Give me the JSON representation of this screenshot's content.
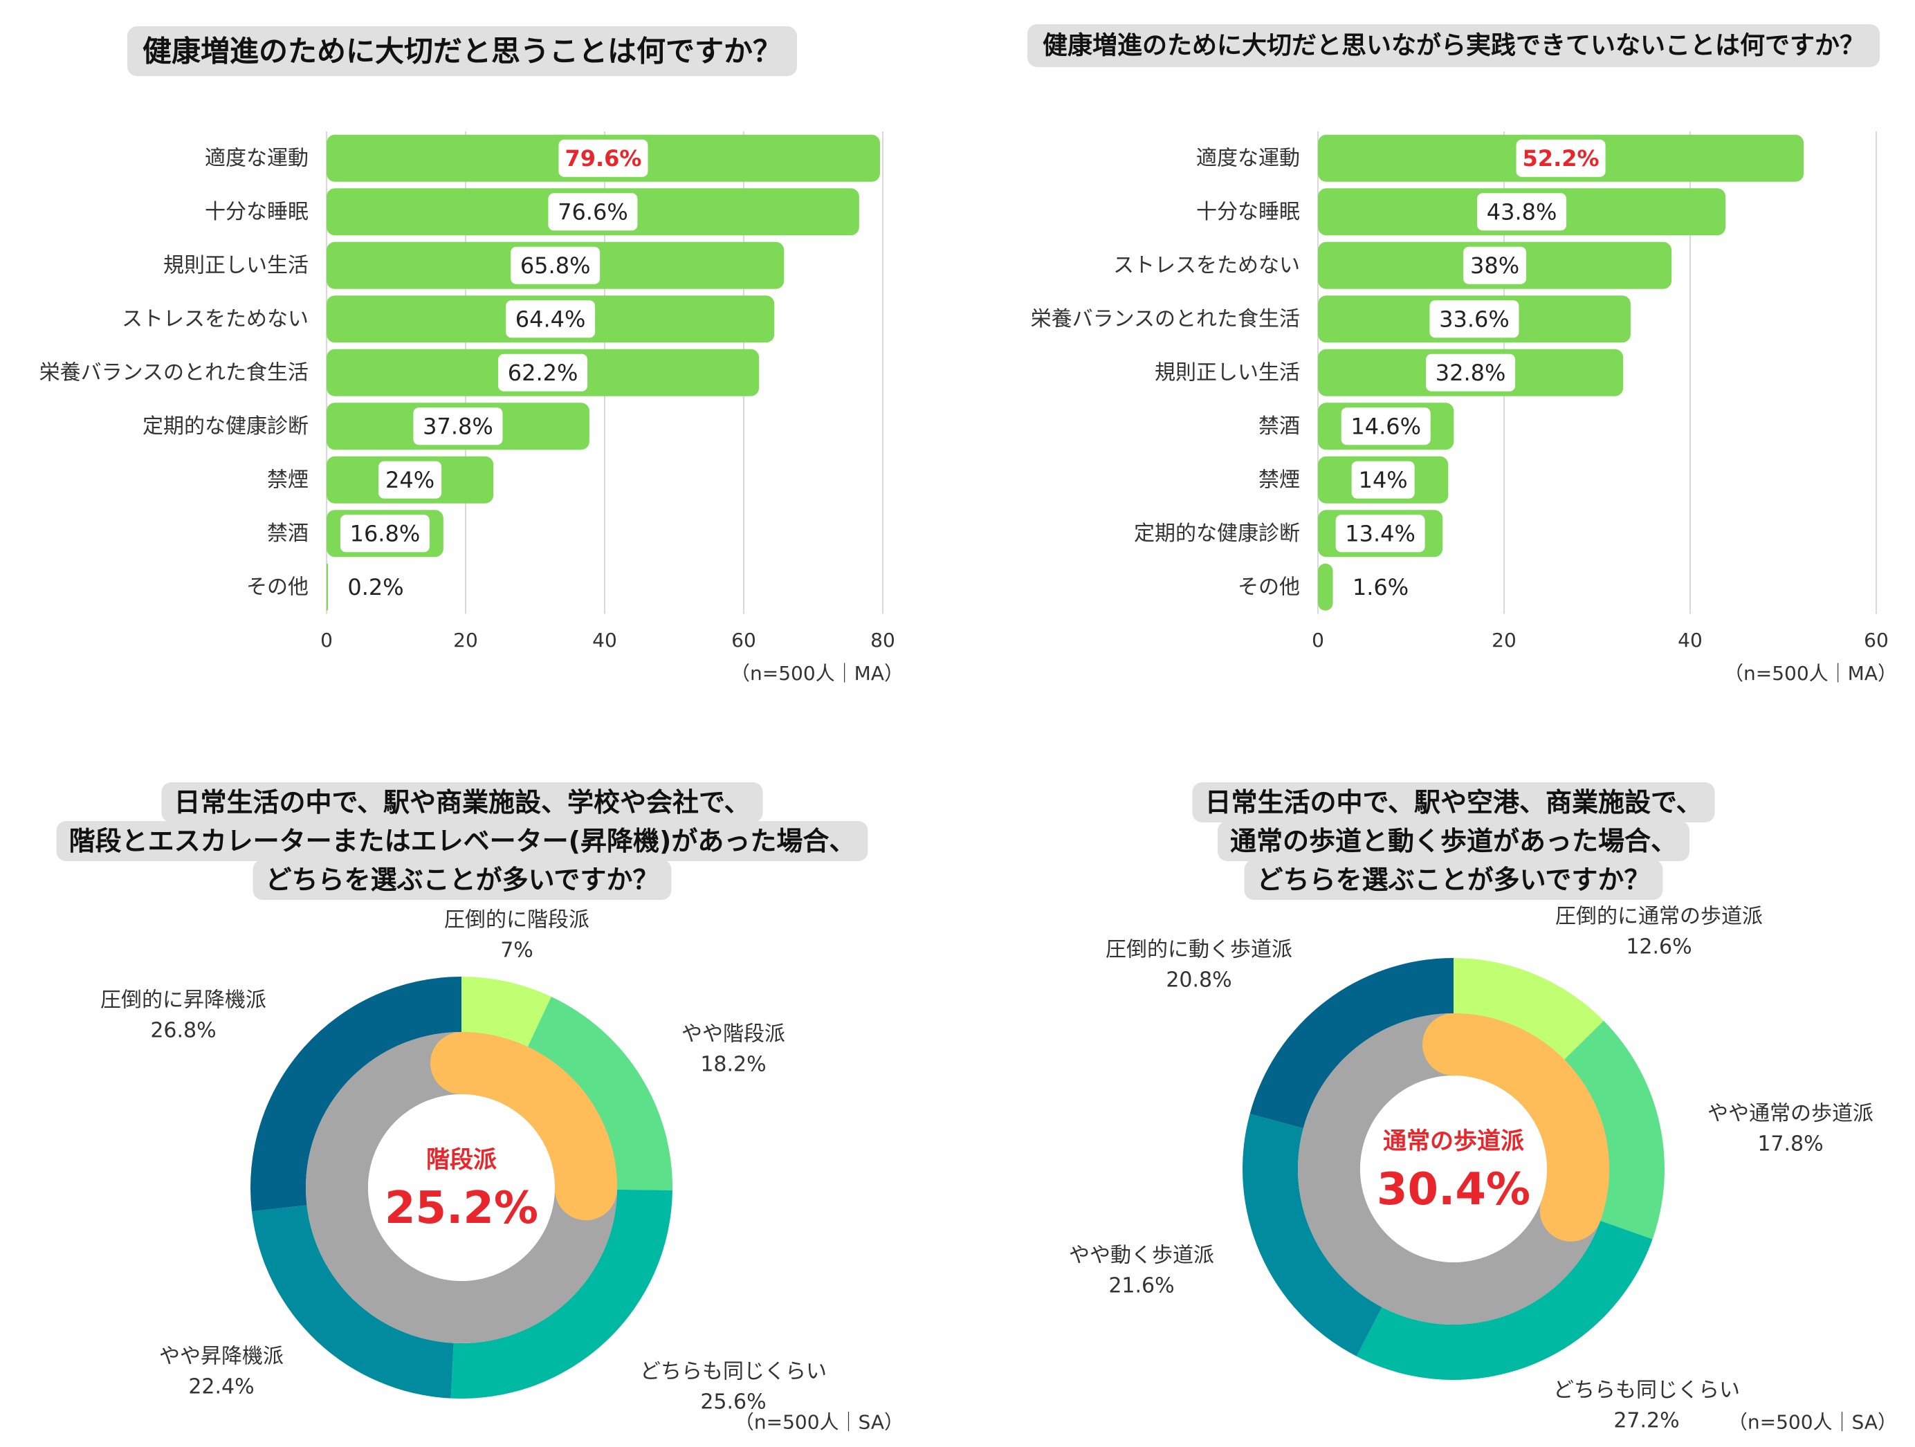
{
  "colors": {
    "bar": "#7ed957",
    "grid": "#d9d9d9",
    "title_bg": "#e0e0e0",
    "highlight": "#e8262b",
    "inner_gray": "#a6a6a6",
    "inner_orange": "#ffbd59",
    "donut": [
      "#c1ff72",
      "#5ce08a",
      "#00b9a3",
      "#008c9e",
      "#02648a"
    ]
  },
  "chart_data": [
    {
      "type": "bar",
      "orientation": "horizontal",
      "title": "健康増進のために大切だと思うことは何ですか？",
      "categories": [
        "適度な運動",
        "十分な睡眠",
        "規則正しい生活",
        "ストレスをためない",
        "栄養バランスのとれた食生活",
        "定期的な健康診断",
        "禁煙",
        "禁酒",
        "その他"
      ],
      "values": [
        79.6,
        76.6,
        65.8,
        64.4,
        62.2,
        37.8,
        24,
        16.8,
        0.2
      ],
      "labels": [
        "79.6%",
        "76.6%",
        "65.8%",
        "64.4%",
        "62.2%",
        "37.8%",
        "24%",
        "16.8%",
        "0.2%"
      ],
      "highlight_index": 0,
      "xlim": [
        0,
        80
      ],
      "ticks": [
        0,
        20,
        40,
        60,
        80
      ],
      "note": "（n=500人｜MA）"
    },
    {
      "type": "bar",
      "orientation": "horizontal",
      "title": "健康増進のために大切だと思いながら実践できていないことは何ですか？",
      "categories": [
        "適度な運動",
        "十分な睡眠",
        "ストレスをためない",
        "栄養バランスのとれた食生活",
        "規則正しい生活",
        "禁酒",
        "禁煙",
        "定期的な健康診断",
        "その他"
      ],
      "values": [
        52.2,
        43.8,
        38,
        33.6,
        32.8,
        14.6,
        14,
        13.4,
        1.6
      ],
      "labels": [
        "52.2%",
        "43.8%",
        "38%",
        "33.6%",
        "32.8%",
        "14.6%",
        "14%",
        "13.4%",
        "1.6%"
      ],
      "highlight_index": 0,
      "xlim": [
        0,
        60
      ],
      "ticks": [
        0,
        20,
        40,
        60
      ],
      "note": "（n=500人｜MA）"
    },
    {
      "type": "pie",
      "style": "donut",
      "title_lines": [
        "日常生活の中で、駅や商業施設、学校や会社で、",
        "階段とエスカレーターまたはエレベーター(昇降機)があった場合、",
        "どちらを選ぶことが多いですか？"
      ],
      "slices": [
        {
          "name": "圧倒的に階段派",
          "value": 7,
          "label": "7%"
        },
        {
          "name": "やや階段派",
          "value": 18.2,
          "label": "18.2%"
        },
        {
          "name": "どちらも同じくらい",
          "value": 25.6,
          "label": "25.6%"
        },
        {
          "name": "やや昇降機派",
          "value": 22.4,
          "label": "22.4%"
        },
        {
          "name": "圧倒的に昇降機派",
          "value": 26.8,
          "label": "26.8%"
        }
      ],
      "inner_ring": {
        "name": "階段派",
        "value": 25.2,
        "label": "25.2%"
      },
      "note": "（n=500人｜SA）"
    },
    {
      "type": "pie",
      "style": "donut",
      "title_lines": [
        "日常生活の中で、駅や空港、商業施設で、",
        "通常の歩道と動く歩道があった場合、",
        "どちらを選ぶことが多いですか？"
      ],
      "slices": [
        {
          "name": "圧倒的に通常の歩道派",
          "value": 12.6,
          "label": "12.6%"
        },
        {
          "name": "やや通常の歩道派",
          "value": 17.8,
          "label": "17.8%"
        },
        {
          "name": "どちらも同じくらい",
          "value": 27.2,
          "label": "27.2%"
        },
        {
          "name": "やや動く歩道派",
          "value": 21.6,
          "label": "21.6%"
        },
        {
          "name": "圧倒的に動く歩道派",
          "value": 20.8,
          "label": "20.8%"
        }
      ],
      "inner_ring": {
        "name": "通常の歩道派",
        "value": 30.4,
        "label": "30.4%"
      },
      "note": "（n=500人｜SA）"
    }
  ]
}
